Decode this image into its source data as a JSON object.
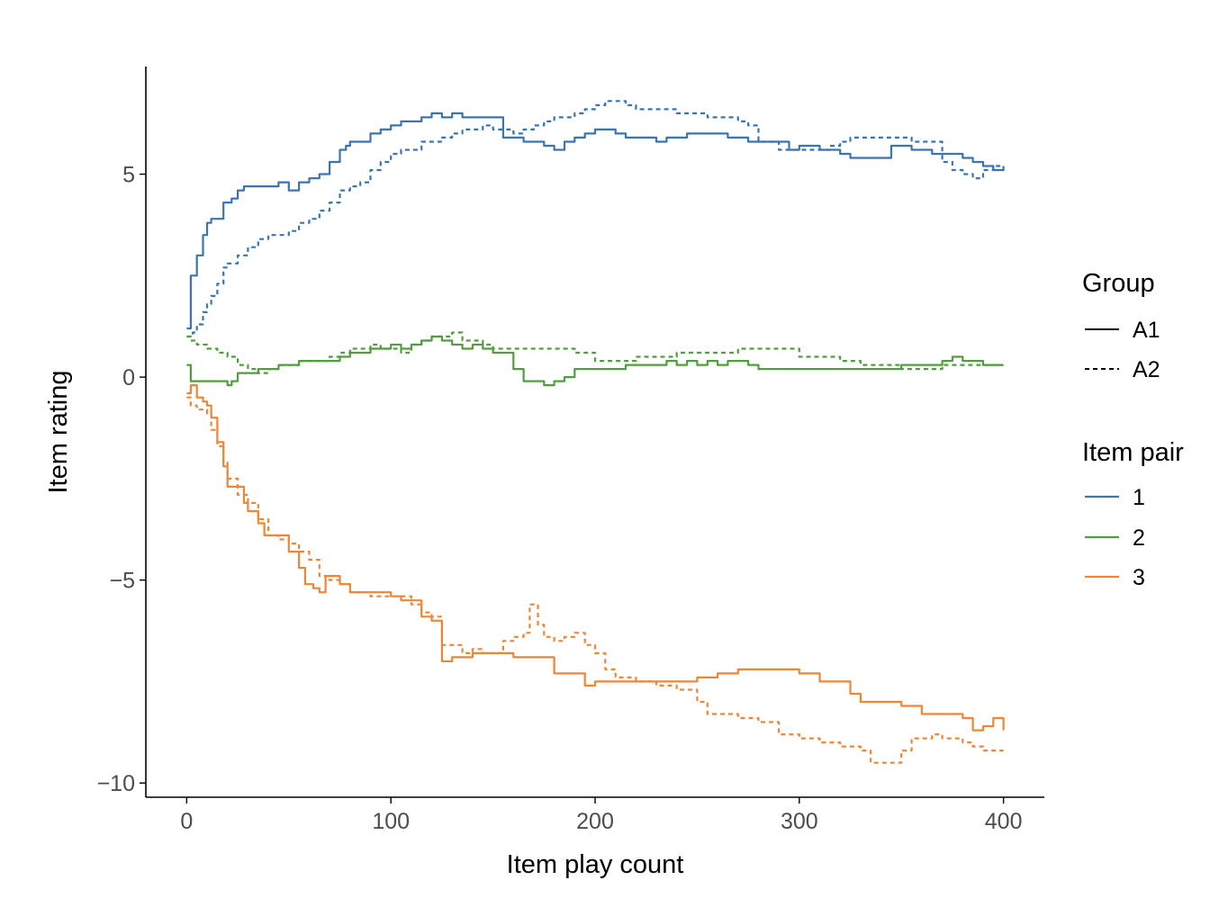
{
  "chart_data": {
    "type": "line",
    "title": "",
    "xlabel": "Item play count",
    "ylabel": "Item rating",
    "xlim": [
      -20,
      420
    ],
    "ylim": [
      -10.35,
      7.65
    ],
    "xticks": [
      0,
      100,
      200,
      300,
      400
    ],
    "xtick_labels": [
      "0",
      "100",
      "200",
      "300",
      "400"
    ],
    "yticks": [
      -10,
      -5,
      0,
      5
    ],
    "ytick_labels": [
      "−10",
      "−5",
      "0",
      "5"
    ],
    "grid": false,
    "legend_position": "right",
    "legends": [
      {
        "title": "Group",
        "entries": [
          {
            "label": "A1",
            "linetype": "solid",
            "color": "#000000"
          },
          {
            "label": "A2",
            "linetype": "dashed",
            "color": "#000000"
          }
        ]
      },
      {
        "title": "Item pair",
        "entries": [
          {
            "label": "1",
            "color": "#3b75af"
          },
          {
            "label": "2",
            "color": "#519e3e"
          },
          {
            "label": "3",
            "color": "#ef8636"
          }
        ]
      }
    ],
    "series": [
      {
        "pair": "1",
        "group": "A1",
        "color": "#3b75af",
        "linetype": "solid",
        "x": [
          0,
          2,
          5,
          8,
          10,
          12,
          15,
          18,
          20,
          22,
          25,
          28,
          30,
          35,
          40,
          45,
          50,
          55,
          60,
          65,
          70,
          75,
          78,
          80,
          85,
          90,
          95,
          100,
          105,
          110,
          115,
          120,
          125,
          130,
          135,
          140,
          145,
          150,
          155,
          160,
          165,
          170,
          175,
          180,
          185,
          190,
          195,
          200,
          205,
          210,
          215,
          220,
          225,
          230,
          235,
          240,
          245,
          250,
          255,
          260,
          265,
          270,
          275,
          280,
          285,
          290,
          295,
          300,
          305,
          310,
          315,
          320,
          325,
          330,
          335,
          340,
          345,
          350,
          355,
          360,
          365,
          370,
          375,
          380,
          385,
          390,
          395,
          400
        ],
        "y": [
          1.2,
          2.5,
          3.0,
          3.5,
          3.8,
          3.9,
          3.9,
          4.3,
          4.3,
          4.4,
          4.6,
          4.7,
          4.7,
          4.7,
          4.7,
          4.8,
          4.6,
          4.8,
          4.9,
          5.0,
          5.3,
          5.6,
          5.7,
          5.8,
          5.8,
          6.0,
          6.1,
          6.2,
          6.3,
          6.3,
          6.4,
          6.5,
          6.4,
          6.5,
          6.4,
          6.4,
          6.4,
          6.4,
          5.9,
          5.9,
          5.8,
          5.8,
          5.7,
          5.6,
          5.8,
          5.9,
          6.0,
          6.1,
          6.1,
          6.0,
          5.9,
          5.9,
          5.9,
          5.8,
          5.9,
          5.9,
          6.0,
          6.0,
          6.0,
          6.0,
          5.9,
          5.9,
          5.8,
          5.8,
          5.8,
          5.8,
          5.6,
          5.7,
          5.7,
          5.6,
          5.6,
          5.5,
          5.4,
          5.4,
          5.4,
          5.4,
          5.7,
          5.7,
          5.6,
          5.6,
          5.5,
          5.5,
          5.5,
          5.4,
          5.3,
          5.2,
          5.1,
          5.2
        ]
      },
      {
        "pair": "1",
        "group": "A2",
        "color": "#3b75af",
        "linetype": "dashed",
        "x": [
          0,
          3,
          5,
          8,
          10,
          12,
          15,
          18,
          20,
          25,
          30,
          35,
          40,
          45,
          50,
          55,
          60,
          65,
          70,
          75,
          80,
          85,
          90,
          95,
          100,
          105,
          110,
          115,
          120,
          125,
          130,
          135,
          140,
          145,
          150,
          155,
          160,
          165,
          170,
          175,
          180,
          185,
          190,
          195,
          200,
          205,
          210,
          215,
          220,
          225,
          230,
          235,
          240,
          245,
          250,
          255,
          260,
          265,
          270,
          275,
          280,
          285,
          290,
          295,
          300,
          305,
          310,
          315,
          320,
          325,
          330,
          335,
          340,
          345,
          350,
          355,
          360,
          365,
          370,
          375,
          380,
          385,
          390,
          395,
          400
        ],
        "y": [
          1.0,
          1.1,
          1.3,
          1.6,
          1.8,
          2.0,
          2.3,
          2.7,
          2.8,
          3.0,
          3.2,
          3.4,
          3.5,
          3.5,
          3.6,
          3.8,
          3.9,
          4.1,
          4.3,
          4.6,
          4.7,
          4.8,
          5.1,
          5.3,
          5.5,
          5.6,
          5.6,
          5.8,
          5.8,
          5.9,
          6.0,
          6.1,
          6.1,
          6.2,
          6.1,
          6.1,
          6.0,
          6.1,
          6.2,
          6.3,
          6.4,
          6.4,
          6.5,
          6.6,
          6.7,
          6.8,
          6.8,
          6.7,
          6.6,
          6.6,
          6.6,
          6.6,
          6.5,
          6.5,
          6.5,
          6.4,
          6.4,
          6.4,
          6.3,
          6.2,
          5.8,
          5.8,
          5.6,
          5.6,
          5.6,
          5.6,
          5.6,
          5.7,
          5.8,
          5.9,
          5.9,
          5.9,
          5.9,
          5.9,
          5.9,
          5.8,
          5.8,
          5.8,
          5.3,
          5.1,
          5.0,
          4.9,
          5.1,
          5.2,
          5.2
        ]
      },
      {
        "pair": "2",
        "group": "A1",
        "color": "#519e3e",
        "linetype": "solid",
        "x": [
          0,
          2,
          5,
          10,
          15,
          20,
          22,
          25,
          30,
          35,
          40,
          45,
          50,
          55,
          60,
          65,
          70,
          75,
          80,
          85,
          90,
          95,
          100,
          105,
          110,
          115,
          120,
          125,
          130,
          135,
          140,
          145,
          150,
          155,
          160,
          165,
          170,
          175,
          180,
          185,
          190,
          195,
          200,
          205,
          210,
          215,
          220,
          225,
          230,
          235,
          240,
          245,
          250,
          255,
          260,
          265,
          270,
          275,
          280,
          290,
          300,
          310,
          320,
          330,
          340,
          350,
          360,
          365,
          370,
          375,
          380,
          385,
          390,
          395,
          400
        ],
        "y": [
          0.3,
          -0.1,
          -0.1,
          -0.1,
          -0.1,
          -0.2,
          -0.1,
          0.1,
          0.1,
          0.2,
          0.2,
          0.3,
          0.3,
          0.4,
          0.4,
          0.4,
          0.4,
          0.5,
          0.6,
          0.6,
          0.7,
          0.7,
          0.8,
          0.7,
          0.8,
          0.9,
          1.0,
          0.9,
          0.8,
          0.7,
          0.8,
          0.7,
          0.6,
          0.6,
          0.2,
          -0.1,
          -0.1,
          -0.2,
          -0.1,
          0.0,
          0.2,
          0.2,
          0.2,
          0.2,
          0.2,
          0.3,
          0.3,
          0.3,
          0.3,
          0.4,
          0.3,
          0.4,
          0.3,
          0.4,
          0.3,
          0.4,
          0.4,
          0.3,
          0.2,
          0.2,
          0.2,
          0.2,
          0.2,
          0.2,
          0.2,
          0.3,
          0.3,
          0.3,
          0.4,
          0.5,
          0.4,
          0.4,
          0.3,
          0.3,
          0.3
        ]
      },
      {
        "pair": "2",
        "group": "A2",
        "color": "#519e3e",
        "linetype": "dashed",
        "x": [
          0,
          2,
          5,
          10,
          15,
          20,
          25,
          30,
          35,
          40,
          45,
          50,
          55,
          60,
          65,
          70,
          75,
          80,
          85,
          90,
          95,
          100,
          105,
          110,
          115,
          120,
          125,
          130,
          135,
          140,
          145,
          150,
          160,
          170,
          180,
          190,
          200,
          210,
          220,
          230,
          240,
          250,
          260,
          270,
          280,
          290,
          300,
          310,
          320,
          330,
          340,
          350,
          360,
          370,
          380,
          390,
          400
        ],
        "y": [
          1.0,
          0.9,
          0.8,
          0.7,
          0.6,
          0.5,
          0.3,
          0.2,
          0.1,
          0.2,
          0.3,
          0.3,
          0.4,
          0.4,
          0.4,
          0.5,
          0.6,
          0.7,
          0.7,
          0.8,
          0.7,
          0.7,
          0.6,
          0.8,
          0.9,
          1.0,
          1.0,
          1.1,
          0.9,
          0.9,
          0.8,
          0.7,
          0.7,
          0.7,
          0.7,
          0.6,
          0.4,
          0.4,
          0.5,
          0.5,
          0.6,
          0.6,
          0.6,
          0.7,
          0.7,
          0.7,
          0.5,
          0.5,
          0.4,
          0.3,
          0.3,
          0.2,
          0.2,
          0.3,
          0.3,
          0.3,
          0.3
        ]
      },
      {
        "pair": "3",
        "group": "A1",
        "color": "#ef8636",
        "linetype": "solid",
        "x": [
          0,
          2,
          5,
          8,
          10,
          12,
          15,
          18,
          20,
          25,
          28,
          30,
          35,
          38,
          40,
          45,
          50,
          55,
          58,
          62,
          65,
          68,
          70,
          75,
          80,
          90,
          100,
          105,
          110,
          115,
          120,
          125,
          130,
          140,
          150,
          160,
          170,
          175,
          180,
          190,
          195,
          200,
          210,
          220,
          230,
          240,
          250,
          260,
          270,
          280,
          290,
          300,
          310,
          320,
          325,
          330,
          340,
          345,
          350,
          360,
          370,
          375,
          380,
          385,
          390,
          395,
          400
        ],
        "y": [
          -0.4,
          -0.2,
          -0.5,
          -0.6,
          -0.7,
          -1.0,
          -1.6,
          -2.2,
          -2.7,
          -2.7,
          -3.1,
          -3.3,
          -3.6,
          -3.9,
          -3.9,
          -3.9,
          -4.3,
          -4.7,
          -5.1,
          -5.2,
          -5.3,
          -4.9,
          -4.9,
          -5.1,
          -5.3,
          -5.3,
          -5.4,
          -5.5,
          -5.5,
          -5.9,
          -6.0,
          -7.0,
          -6.9,
          -6.8,
          -6.8,
          -6.9,
          -6.9,
          -6.9,
          -7.3,
          -7.3,
          -7.6,
          -7.5,
          -7.5,
          -7.5,
          -7.5,
          -7.5,
          -7.4,
          -7.3,
          -7.2,
          -7.2,
          -7.2,
          -7.3,
          -7.5,
          -7.5,
          -7.8,
          -8.0,
          -8.0,
          -8.0,
          -8.1,
          -8.3,
          -8.3,
          -8.3,
          -8.4,
          -8.7,
          -8.6,
          -8.4,
          -8.7
        ]
      },
      {
        "pair": "3",
        "group": "A2",
        "color": "#ef8636",
        "linetype": "dashed",
        "x": [
          0,
          2,
          5,
          8,
          10,
          12,
          15,
          18,
          20,
          25,
          30,
          35,
          40,
          45,
          50,
          55,
          60,
          65,
          70,
          75,
          80,
          90,
          100,
          110,
          115,
          120,
          125,
          130,
          135,
          140,
          145,
          150,
          155,
          160,
          165,
          168,
          172,
          175,
          180,
          185,
          190,
          195,
          200,
          205,
          210,
          220,
          230,
          240,
          250,
          255,
          260,
          270,
          280,
          290,
          300,
          310,
          320,
          325,
          330,
          335,
          340,
          345,
          350,
          355,
          360,
          365,
          370,
          375,
          380,
          385,
          390,
          395,
          400
        ],
        "y": [
          -0.5,
          -0.7,
          -0.8,
          -0.8,
          -0.9,
          -1.3,
          -1.7,
          -2.1,
          -2.5,
          -2.9,
          -3.1,
          -3.5,
          -3.9,
          -4.0,
          -4.1,
          -4.3,
          -4.5,
          -4.9,
          -5.0,
          -5.1,
          -5.3,
          -5.4,
          -5.4,
          -5.6,
          -5.8,
          -5.9,
          -6.6,
          -6.6,
          -6.8,
          -6.7,
          -6.8,
          -6.8,
          -6.5,
          -6.4,
          -6.3,
          -5.6,
          -6.1,
          -6.4,
          -6.5,
          -6.4,
          -6.3,
          -6.6,
          -6.8,
          -7.2,
          -7.4,
          -7.5,
          -7.6,
          -7.7,
          -8.0,
          -8.3,
          -8.3,
          -8.4,
          -8.5,
          -8.8,
          -8.9,
          -9.0,
          -9.1,
          -9.1,
          -9.2,
          -9.5,
          -9.5,
          -9.5,
          -9.2,
          -8.9,
          -8.9,
          -8.8,
          -8.9,
          -8.9,
          -9.0,
          -9.1,
          -9.2,
          -9.2,
          -9.2
        ]
      }
    ]
  }
}
